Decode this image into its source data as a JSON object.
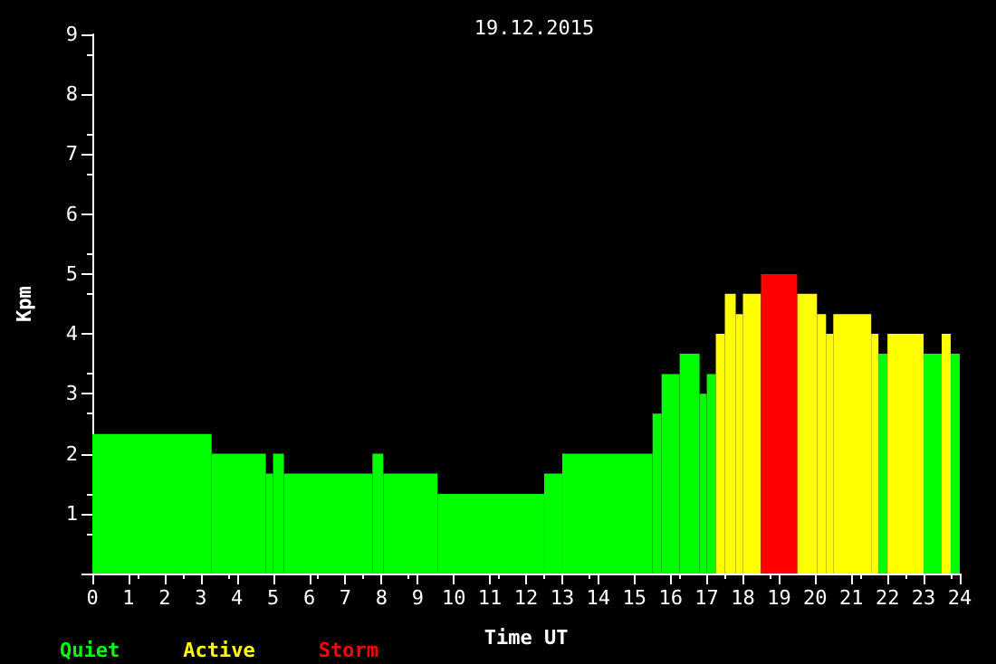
{
  "chart_data": {
    "type": "histogram",
    "title": "19.12.2015",
    "xlabel": "Time UT",
    "ylabel": "Kpm",
    "bins": [
      0,
      3.3,
      4.8,
      5.0,
      5.3,
      7.75,
      8.05,
      9.55,
      12.5,
      13.0,
      15.5,
      15.75,
      16.25,
      16.8,
      17.0,
      17.25,
      17.5,
      17.8,
      18.0,
      18.5,
      19.5,
      20.05,
      20.3,
      20.5,
      21.55,
      21.75,
      22.0,
      23.0,
      23.5,
      23.75,
      24
    ],
    "series": [
      {
        "name": "Quiet",
        "color": "#00ff00",
        "values": [
          2.33,
          2,
          1.67,
          2,
          1.67,
          2,
          1.67,
          1.33,
          1.67,
          2,
          2.67,
          3.33,
          3.67,
          3,
          3.33,
          null,
          null,
          null,
          null,
          null,
          null,
          null,
          null,
          null,
          null,
          3.67,
          null,
          3.67,
          null,
          3.67
        ]
      },
      {
        "name": "Active",
        "color": "#ffff00",
        "values": [
          null,
          null,
          null,
          null,
          null,
          null,
          null,
          null,
          null,
          null,
          null,
          null,
          null,
          null,
          null,
          4,
          4.67,
          4.33,
          4.67,
          null,
          4.67,
          4.33,
          4,
          4.33,
          4,
          null,
          4,
          null,
          4,
          null
        ]
      },
      {
        "name": "Storm",
        "color": "#ff0000",
        "values": [
          null,
          null,
          null,
          null,
          null,
          null,
          null,
          null,
          null,
          null,
          null,
          null,
          null,
          null,
          null,
          null,
          null,
          null,
          null,
          5,
          null,
          null,
          null,
          null,
          null,
          null,
          null,
          null,
          null,
          null
        ]
      }
    ],
    "xlim": [
      0,
      24
    ],
    "xticks": [
      0,
      1,
      2,
      3,
      4,
      5,
      6,
      7,
      8,
      9,
      10,
      11,
      12,
      13,
      14,
      15,
      16,
      17,
      18,
      19,
      20,
      21,
      22,
      23,
      24
    ],
    "ylim": [
      0,
      9
    ],
    "yticks": [
      {
        "value": 0,
        "label": null
      },
      1,
      2,
      3,
      4,
      5,
      6,
      7,
      8,
      9
    ],
    "legend": "bottom left"
  }
}
